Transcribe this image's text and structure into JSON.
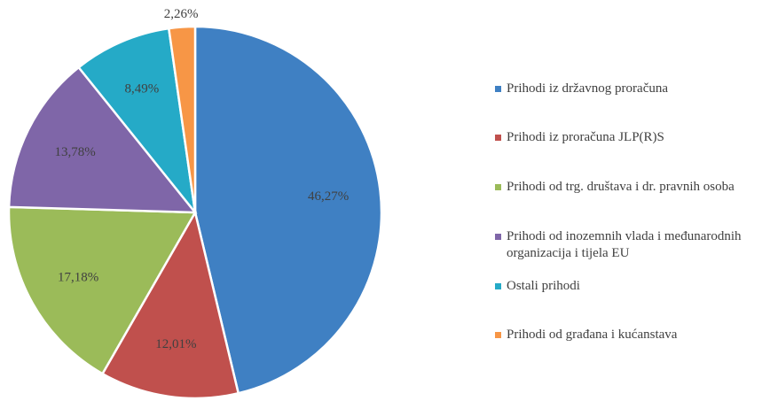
{
  "chart_data": {
    "type": "pie",
    "categories": [
      "Prihodi iz državnog proračuna",
      "Prihodi iz proračuna JLP(R)S",
      "Prihodi od trg. društava i dr. pravnih osoba",
      "Prihodi od inozemnih vlada i međunarodnih organizacija i tijela EU",
      "Ostali prihodi",
      "Prihodi od građana i kućanstava"
    ],
    "values": [
      46.27,
      12.01,
      17.18,
      13.78,
      8.49,
      2.26
    ],
    "value_labels": [
      "46,27%",
      "12,01%",
      "17,18%",
      "13,78%",
      "8,49%",
      "2,26%"
    ],
    "colors": [
      "#3f80c3",
      "#c0504d",
      "#9bbb59",
      "#7f66a8",
      "#25aac7",
      "#f79646"
    ],
    "legend": "right"
  }
}
